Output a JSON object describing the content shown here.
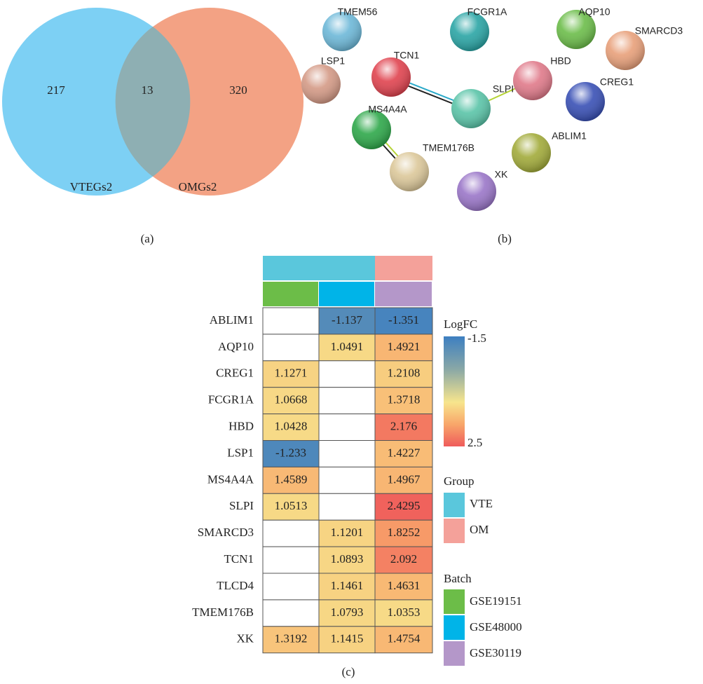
{
  "venn": {
    "sets": [
      {
        "label": "VTEGs2",
        "only": 217
      },
      {
        "label": "OMGs2",
        "only": 320
      }
    ],
    "overlap": 13
  },
  "panel_labels": [
    "(a)",
    "(b)",
    "(c)"
  ],
  "network": {
    "nodes": [
      {
        "label": "TMEM56"
      },
      {
        "label": "FCGR1A"
      },
      {
        "label": "AQP10"
      },
      {
        "label": "SMARCD3"
      },
      {
        "label": "LSP1"
      },
      {
        "label": "TCN1"
      },
      {
        "label": "HBD"
      },
      {
        "label": "SLPI"
      },
      {
        "label": "CREG1"
      },
      {
        "label": "MS4A4A"
      },
      {
        "label": "TMEM176B"
      },
      {
        "label": "ABLIM1"
      },
      {
        "label": "XK"
      }
    ]
  },
  "heatmap": {
    "groups": [
      {
        "label": "VTE",
        "color": "#5ac7dc"
      },
      {
        "label": "OM",
        "color": "#f4a19a"
      }
    ],
    "batches": [
      {
        "label": "GSE19151",
        "color": "#6cbd48"
      },
      {
        "label": "GSE48000",
        "color": "#00b4e8"
      },
      {
        "label": "GSE30119",
        "color": "#b497c9"
      }
    ],
    "rows": [
      {
        "gene": "ABLIM1",
        "values": [
          null,
          -1.137,
          -1.351
        ]
      },
      {
        "gene": "AQP10",
        "values": [
          null,
          1.0491,
          1.4921
        ]
      },
      {
        "gene": "CREG1",
        "values": [
          1.1271,
          null,
          1.2108
        ]
      },
      {
        "gene": "FCGR1A",
        "values": [
          1.0668,
          null,
          1.3718
        ]
      },
      {
        "gene": "HBD",
        "values": [
          1.0428,
          null,
          2.176
        ]
      },
      {
        "gene": "LSP1",
        "values": [
          -1.233,
          null,
          1.4227
        ]
      },
      {
        "gene": "MS4A4A",
        "values": [
          1.4589,
          null,
          1.4967
        ]
      },
      {
        "gene": "SLPI",
        "values": [
          1.0513,
          null,
          2.4295
        ]
      },
      {
        "gene": "SMARCD3",
        "values": [
          null,
          1.1201,
          1.8252
        ]
      },
      {
        "gene": "TCN1",
        "values": [
          null,
          1.0893,
          2.092
        ]
      },
      {
        "gene": "TLCD4",
        "values": [
          null,
          1.1461,
          1.4631
        ]
      },
      {
        "gene": "TMEM176B",
        "values": [
          null,
          1.0793,
          1.0353
        ]
      },
      {
        "gene": "XK",
        "values": [
          1.3192,
          1.1415,
          1.4754
        ]
      }
    ],
    "legend": {
      "logfc_title": "LogFC",
      "logfc_range": [
        -1.5,
        2.5
      ],
      "group_title": "Group",
      "batch_title": "Batch"
    }
  }
}
